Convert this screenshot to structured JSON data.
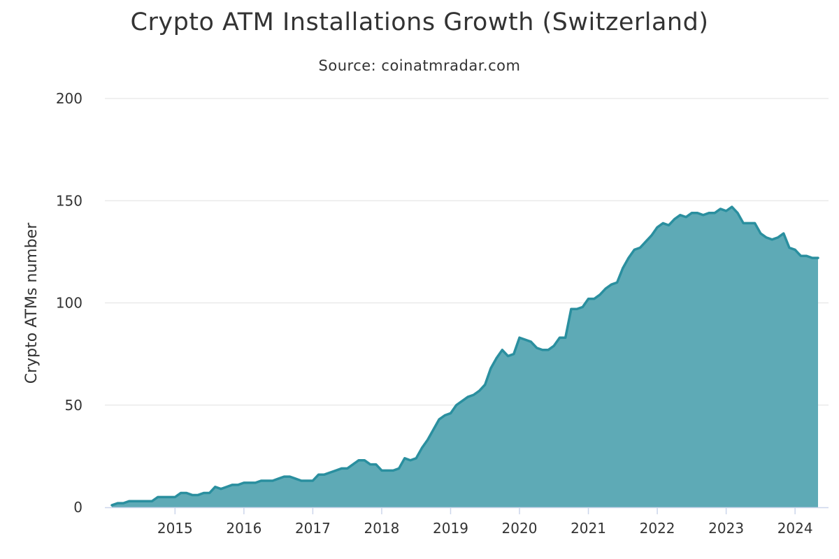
{
  "chart_data": {
    "type": "area",
    "title": "Crypto ATM Installations Growth (Switzerland)",
    "subtitle": "Source: coinatmradar.com",
    "xlabel": "",
    "ylabel": "Crypto ATMs number",
    "xlim": [
      "2014-02",
      "2024-05"
    ],
    "ylim": [
      0,
      200
    ],
    "y_ticks": [
      0,
      50,
      100,
      150,
      200
    ],
    "x_ticks": [
      "2015",
      "2016",
      "2017",
      "2018",
      "2019",
      "2020",
      "2021",
      "2022",
      "2023",
      "2024"
    ],
    "grid": "horizontal",
    "legend": "none",
    "colors": {
      "fill": "#5eaab6",
      "line": "#2a8f9f",
      "grid": "#e6e6e6",
      "axis": "#ccd6eb"
    },
    "series": [
      {
        "x": [
          "2014-02",
          "2014-03",
          "2014-04",
          "2014-05",
          "2014-06",
          "2014-07",
          "2014-08",
          "2014-09",
          "2014-10",
          "2014-11",
          "2014-12",
          "2015-01",
          "2015-02",
          "2015-03",
          "2015-04",
          "2015-05",
          "2015-06",
          "2015-07",
          "2015-08",
          "2015-09",
          "2015-10",
          "2015-11",
          "2015-12",
          "2016-01",
          "2016-02",
          "2016-03",
          "2016-04",
          "2016-05",
          "2016-06",
          "2016-07",
          "2016-08",
          "2016-09",
          "2016-10",
          "2016-11",
          "2016-12",
          "2017-01",
          "2017-02",
          "2017-03",
          "2017-04",
          "2017-05",
          "2017-06",
          "2017-07",
          "2017-08",
          "2017-09",
          "2017-10",
          "2017-11",
          "2017-12",
          "2018-01",
          "2018-02",
          "2018-03",
          "2018-04",
          "2018-05",
          "2018-06",
          "2018-07",
          "2018-08",
          "2018-09",
          "2018-10",
          "2018-11",
          "2018-12",
          "2019-01",
          "2019-02",
          "2019-03",
          "2019-04",
          "2019-05",
          "2019-06",
          "2019-07",
          "2019-08",
          "2019-09",
          "2019-10",
          "2019-11",
          "2019-12",
          "2020-01",
          "2020-02",
          "2020-03",
          "2020-04",
          "2020-05",
          "2020-06",
          "2020-07",
          "2020-08",
          "2020-09",
          "2020-10",
          "2020-11",
          "2020-12",
          "2021-01",
          "2021-02",
          "2021-03",
          "2021-04",
          "2021-05",
          "2021-06",
          "2021-07",
          "2021-08",
          "2021-09",
          "2021-10",
          "2021-11",
          "2021-12",
          "2022-01",
          "2022-02",
          "2022-03",
          "2022-04",
          "2022-05",
          "2022-06",
          "2022-07",
          "2022-08",
          "2022-09",
          "2022-10",
          "2022-11",
          "2022-12",
          "2023-01",
          "2023-02",
          "2023-03",
          "2023-04",
          "2023-05",
          "2023-06",
          "2023-07",
          "2023-08",
          "2023-09",
          "2023-10",
          "2023-11",
          "2023-12",
          "2024-01",
          "2024-02",
          "2024-03",
          "2024-04",
          "2024-05"
        ],
        "y": [
          1,
          2,
          2,
          3,
          3,
          3,
          3,
          3,
          5,
          5,
          5,
          5,
          7,
          7,
          6,
          6,
          7,
          7,
          10,
          9,
          10,
          11,
          11,
          12,
          12,
          12,
          13,
          13,
          13,
          14,
          15,
          15,
          14,
          13,
          13,
          13,
          16,
          16,
          17,
          18,
          19,
          19,
          21,
          23,
          23,
          21,
          21,
          18,
          18,
          18,
          19,
          24,
          23,
          24,
          29,
          33,
          38,
          43,
          45,
          46,
          50,
          52,
          54,
          55,
          57,
          60,
          68,
          73,
          77,
          74,
          75,
          83,
          82,
          81,
          78,
          77,
          77,
          79,
          83,
          83,
          97,
          97,
          98,
          102,
          102,
          104,
          107,
          109,
          110,
          117,
          122,
          126,
          127,
          130,
          133,
          137,
          139,
          138,
          141,
          143,
          142,
          144,
          144,
          143,
          144,
          144,
          146,
          145,
          147,
          144,
          139,
          139,
          139,
          134,
          132,
          131,
          132,
          134,
          127,
          126,
          123,
          123,
          122,
          122
        ]
      }
    ]
  }
}
